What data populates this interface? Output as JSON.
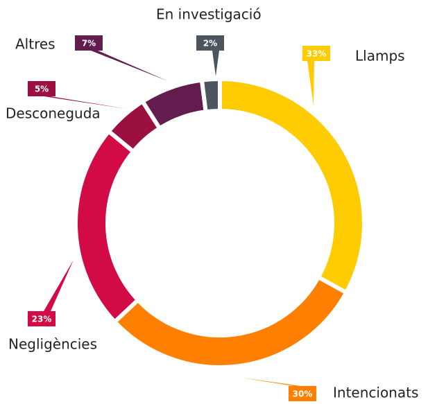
{
  "chart_data": {
    "type": "donut",
    "categories": [
      "Llamps",
      "Intencionats",
      "Negligències",
      "Desconeguda",
      "Altres",
      "En investigació"
    ],
    "values": [
      33,
      30,
      23,
      5,
      7,
      2
    ],
    "value_labels": [
      "33%",
      "30%",
      "23%",
      "5%",
      "7%",
      "2%"
    ],
    "colors": [
      "#fecc00",
      "#ff7f00",
      "#d20a46",
      "#9b1040",
      "#621d4e",
      "#4d5660"
    ]
  }
}
